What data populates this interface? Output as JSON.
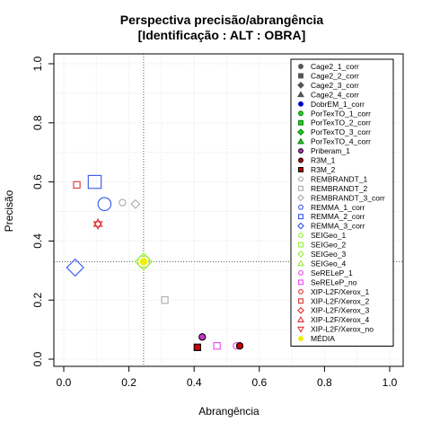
{
  "chart_data": {
    "type": "scatter",
    "title": "Perspectiva precisão/abrangência",
    "subtitle": "[Identificação : ALT : OBRA]",
    "xlabel": "Abrangência",
    "ylabel": "Precisão",
    "xlim": [
      0,
      1
    ],
    "ylim": [
      0,
      1
    ],
    "xticks": [
      "0.0",
      "0.2",
      "0.4",
      "0.6",
      "0.8",
      "1.0"
    ],
    "yticks": [
      "0.0",
      "0.2",
      "0.4",
      "0.6",
      "0.8",
      "1.0"
    ],
    "grid": true,
    "legend_position": "top-right",
    "reference_lines": {
      "vertical_x": 0.245,
      "horizontal_y": 0.33
    },
    "series": [
      {
        "name": "Cage2_1_corr",
        "shape": "circle",
        "stroke": "#555555",
        "fill": "#555555"
      },
      {
        "name": "Cage2_2_corr",
        "shape": "square",
        "stroke": "#555555",
        "fill": "#555555"
      },
      {
        "name": "Cage2_3_corr",
        "shape": "diamond",
        "stroke": "#555555",
        "fill": "#555555"
      },
      {
        "name": "Cage2_4_corr",
        "shape": "triangle",
        "stroke": "#555555",
        "fill": "#555555"
      },
      {
        "name": "DobrEM_1_corr",
        "shape": "circle",
        "stroke": "#0000cc",
        "fill": "#0000cc"
      },
      {
        "name": "PorTexTO_1_corr",
        "shape": "circle",
        "stroke": "#008800",
        "fill": "#33cc33"
      },
      {
        "name": "PorTexTO_2_corr",
        "shape": "square",
        "stroke": "#008800",
        "fill": "#33cc33"
      },
      {
        "name": "PorTexTO_3_corr",
        "shape": "diamond",
        "stroke": "#008800",
        "fill": "#33cc33"
      },
      {
        "name": "PorTexTO_4_corr",
        "shape": "triangle",
        "stroke": "#008800",
        "fill": "#33cc33"
      },
      {
        "name": "Priberam_1",
        "shape": "circle",
        "stroke": "#000000",
        "fill": "#cc33cc"
      },
      {
        "name": "R3M_1",
        "shape": "circle",
        "stroke": "#000000",
        "fill": "#cc0000"
      },
      {
        "name": "R3M_2",
        "shape": "square",
        "stroke": "#000000",
        "fill": "#cc0000"
      },
      {
        "name": "REMBRANDT_1",
        "shape": "circle",
        "stroke": "#aaaaaa",
        "fill": "none"
      },
      {
        "name": "REMBRANDT_2",
        "shape": "square",
        "stroke": "#aaaaaa",
        "fill": "none"
      },
      {
        "name": "REMBRANDT_3_corr",
        "shape": "diamond",
        "stroke": "#aaaaaa",
        "fill": "none"
      },
      {
        "name": "REMMA_1_corr",
        "shape": "circle",
        "stroke": "#3355ee",
        "fill": "none"
      },
      {
        "name": "REMMA_2_corr",
        "shape": "square",
        "stroke": "#3355ee",
        "fill": "none"
      },
      {
        "name": "REMMA_3_corr",
        "shape": "diamond",
        "stroke": "#3355ee",
        "fill": "none"
      },
      {
        "name": "SEIGeo_1",
        "shape": "circle",
        "stroke": "#99ee33",
        "fill": "none"
      },
      {
        "name": "SEIGeo_2",
        "shape": "square",
        "stroke": "#99ee33",
        "fill": "none"
      },
      {
        "name": "SEIGeo_3",
        "shape": "diamond",
        "stroke": "#99ee33",
        "fill": "none"
      },
      {
        "name": "SEIGeo_4",
        "shape": "triangle",
        "stroke": "#99ee33",
        "fill": "none"
      },
      {
        "name": "SeRELeP_1",
        "shape": "circle",
        "stroke": "#ee44ee",
        "fill": "none"
      },
      {
        "name": "SeRELeP_no",
        "shape": "square",
        "stroke": "#ee44ee",
        "fill": "none"
      },
      {
        "name": "XIP-L2F/Xerox_1",
        "shape": "circle",
        "stroke": "#dd3333",
        "fill": "none"
      },
      {
        "name": "XIP-L2F/Xerox_2",
        "shape": "square",
        "stroke": "#dd3333",
        "fill": "none"
      },
      {
        "name": "XIP-L2F/Xerox_3",
        "shape": "diamond",
        "stroke": "#dd3333",
        "fill": "none"
      },
      {
        "name": "XIP-L2F/Xerox_4",
        "shape": "triangle",
        "stroke": "#dd3333",
        "fill": "none"
      },
      {
        "name": "XIP-L2F/Xerox_no",
        "shape": "triangle-down",
        "stroke": "#dd3333",
        "fill": "none"
      },
      {
        "name": "MÉDIA",
        "shape": "circle-filled",
        "stroke": "#eeee00",
        "fill": "#eeee00"
      }
    ],
    "points": [
      {
        "series": "REMBRANDT_1",
        "x": 0.18,
        "y": 0.53,
        "size": 1
      },
      {
        "series": "REMBRANDT_3_corr",
        "x": 0.22,
        "y": 0.525,
        "size": 1
      },
      {
        "series": "REMBRANDT_2",
        "x": 0.31,
        "y": 0.2,
        "size": 1
      },
      {
        "series": "REMMA_2_corr",
        "x": 0.095,
        "y": 0.6,
        "size": 2
      },
      {
        "series": "REMMA_1_corr",
        "x": 0.125,
        "y": 0.525,
        "size": 2
      },
      {
        "series": "REMMA_3_corr",
        "x": 0.035,
        "y": 0.31,
        "size": 2
      },
      {
        "series": "XIP-L2F/Xerox_2",
        "x": 0.04,
        "y": 0.59,
        "size": 1
      },
      {
        "series": "XIP-L2F/Xerox_4",
        "x": 0.105,
        "y": 0.46,
        "size": 1
      },
      {
        "series": "XIP-L2F/Xerox_no",
        "x": 0.105,
        "y": 0.455,
        "size": 1
      },
      {
        "series": "SEIGeo_1",
        "x": 0.245,
        "y": 0.33,
        "size": 1.8,
        "role": "media-halo"
      },
      {
        "series": "SEIGeo_3",
        "x": 0.245,
        "y": 0.33,
        "size": 2,
        "role": "media-halo"
      },
      {
        "series": "MÉDIA",
        "x": 0.245,
        "y": 0.33,
        "size": 1
      },
      {
        "series": "Priberam_1",
        "x": 0.425,
        "y": 0.075,
        "size": 1
      },
      {
        "series": "R3M_2",
        "x": 0.41,
        "y": 0.04,
        "size": 1
      },
      {
        "series": "SeRELeP_no",
        "x": 0.47,
        "y": 0.045,
        "size": 1
      },
      {
        "series": "SeRELeP_1",
        "x": 0.53,
        "y": 0.045,
        "size": 1
      },
      {
        "series": "R3M_1",
        "x": 0.54,
        "y": 0.045,
        "size": 1
      }
    ]
  }
}
